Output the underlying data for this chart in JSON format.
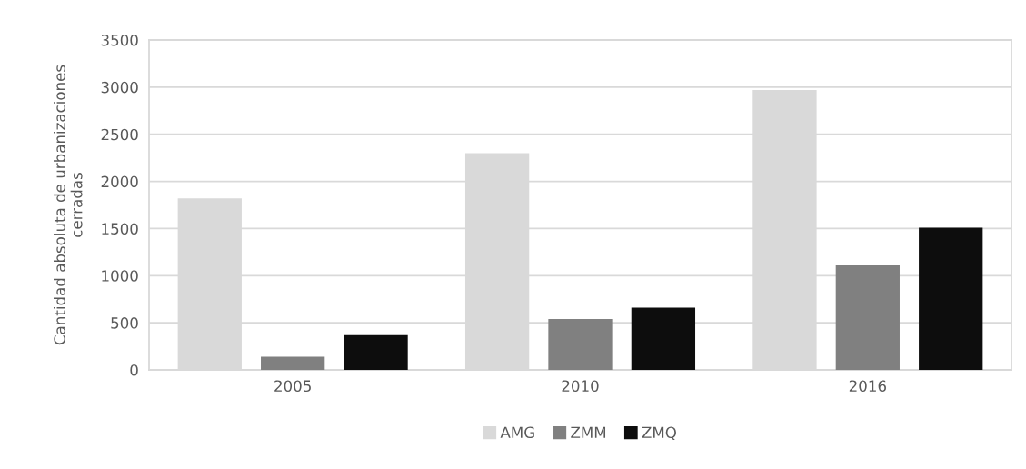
{
  "chart_data": {
    "type": "bar",
    "ylabel": "Cantidad absoluta de urbanizaciones\ncerradas",
    "categories": [
      "2005",
      "2010",
      "2016"
    ],
    "series": [
      {
        "name": "AMG",
        "color": "#d9d9d9",
        "values": [
          1820,
          2300,
          2970
        ]
      },
      {
        "name": "ZMM",
        "color": "#808080",
        "values": [
          140,
          540,
          1110
        ]
      },
      {
        "name": "ZMQ",
        "color": "#0d0d0d",
        "values": [
          370,
          660,
          1510
        ]
      }
    ],
    "ylim": [
      0,
      3500
    ],
    "yticks": [
      0,
      500,
      1000,
      1500,
      2000,
      2500,
      3000,
      3500
    ],
    "grid": "y",
    "legend": "bottom"
  }
}
